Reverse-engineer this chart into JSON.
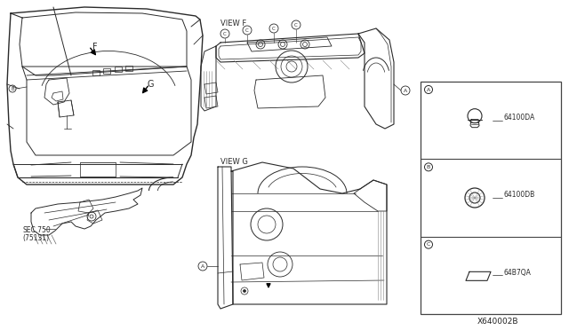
{
  "background_color": "#ffffff",
  "line_color": "#2a2a2a",
  "diagram_id": "X640002B",
  "view_f_label": "VIEW F",
  "view_g_label": "VIEW G",
  "section_label": "SEC.750\n(75131)",
  "legend": [
    {
      "letter": "A",
      "part": "64100DA"
    },
    {
      "letter": "B",
      "part": "64100DB"
    },
    {
      "letter": "C",
      "part": "64B7QA"
    }
  ],
  "figsize": [
    6.4,
    3.72
  ],
  "dpi": 100
}
